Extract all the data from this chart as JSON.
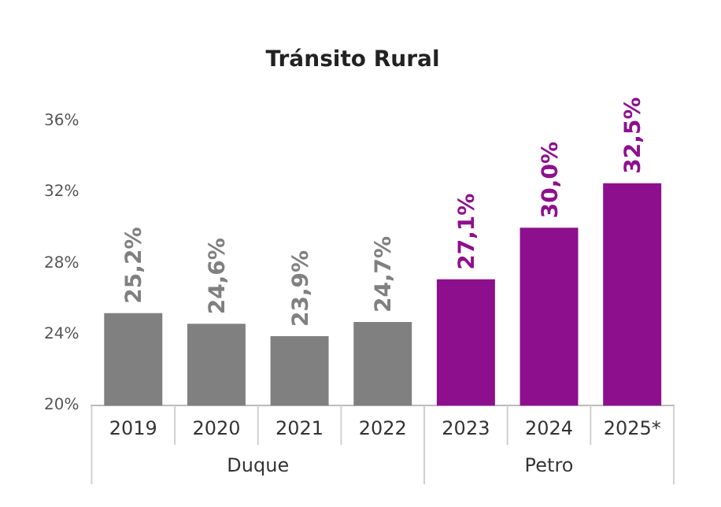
{
  "chart_data": {
    "type": "bar",
    "title": "Tránsito Rural",
    "categories": [
      "2019",
      "2020",
      "2021",
      "2022",
      "2023",
      "2024",
      "2025*"
    ],
    "values": [
      25.2,
      24.6,
      23.9,
      24.7,
      27.1,
      30.0,
      32.5
    ],
    "colors": [
      "#808080",
      "#808080",
      "#808080",
      "#808080",
      "#8e0f8e",
      "#8e0f8e",
      "#8e0f8e"
    ],
    "value_labels": [
      "25,2%",
      "24,6%",
      "23,9%",
      "24,7%",
      "27,1%",
      "30,0%",
      "32,5%"
    ],
    "ylim": [
      20,
      36
    ],
    "yticks": [
      {
        "value": 20,
        "label": "20%"
      },
      {
        "value": 24,
        "label": "24%"
      },
      {
        "value": 28,
        "label": "28%"
      },
      {
        "value": 32,
        "label": "32%"
      },
      {
        "value": 36,
        "label": "36%"
      }
    ],
    "grid": false,
    "annotations": [
      "Duque",
      "Petro"
    ]
  }
}
